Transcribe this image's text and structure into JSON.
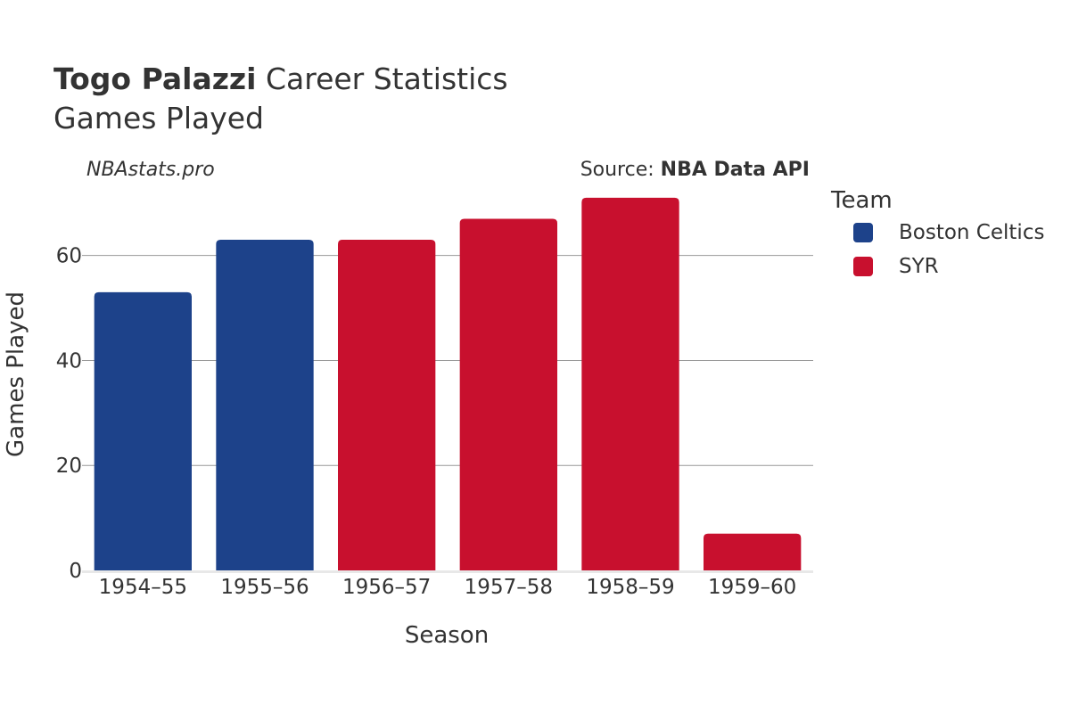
{
  "header": {
    "player_name": "Togo Palazzi",
    "title_suffix": " Career Statistics",
    "subtitle": "Games Played",
    "watermark": "NBAstats.pro",
    "source_prefix": "Source: ",
    "source_name": "NBA Data API"
  },
  "legend": {
    "title": "Team",
    "items": [
      {
        "label": "Boston Celtics",
        "color": "#1d428a"
      },
      {
        "label": "SYR",
        "color": "#c8102e"
      }
    ]
  },
  "chart_data": {
    "type": "bar",
    "title": "Togo Palazzi Career Statistics",
    "subtitle": "Games Played",
    "xlabel": "Season",
    "ylabel": "Games Played",
    "ylim": [
      0,
      72
    ],
    "yticks": [
      0,
      20,
      40,
      60
    ],
    "grid": true,
    "legend_position": "right",
    "categories": [
      "1954–55",
      "1955–56",
      "1956–57",
      "1957–58",
      "1958–59",
      "1959–60"
    ],
    "values": [
      53,
      63,
      63,
      67,
      71,
      7
    ],
    "teams": [
      "Boston Celtics",
      "Boston Celtics",
      "SYR",
      "SYR",
      "SYR",
      "SYR"
    ],
    "series": [
      {
        "name": "Boston Celtics",
        "color": "#1d428a",
        "values": [
          53,
          63,
          null,
          null,
          null,
          null
        ]
      },
      {
        "name": "SYR",
        "color": "#c8102e",
        "values": [
          null,
          null,
          63,
          67,
          71,
          7
        ]
      }
    ]
  }
}
